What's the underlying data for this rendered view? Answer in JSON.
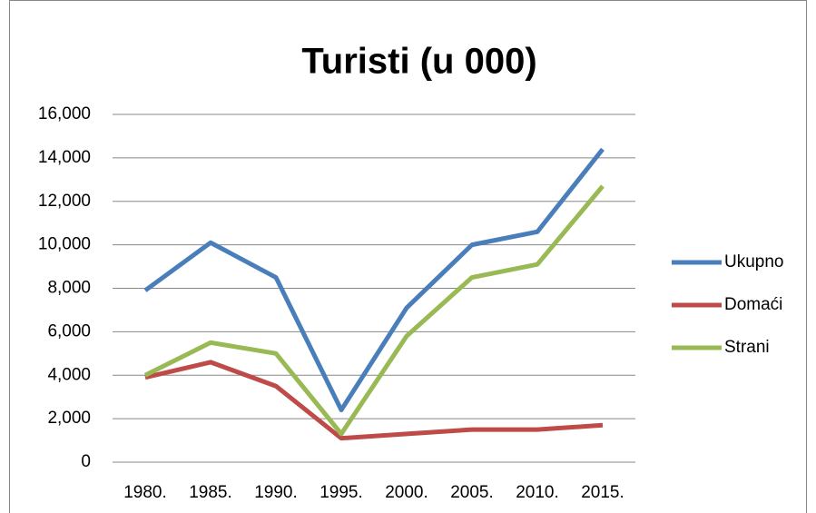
{
  "chart_data": {
    "type": "line",
    "title": "Turisti (u 000)",
    "categories": [
      "1980.",
      "1985.",
      "1990.",
      "1995.",
      "2000.",
      "2005.",
      "2010.",
      "2015."
    ],
    "series": [
      {
        "name": "Ukupno",
        "color": "#4a7ebb",
        "values": [
          7900,
          10100,
          8500,
          2400,
          7100,
          10000,
          10600,
          14400
        ]
      },
      {
        "name": "Domaći",
        "color": "#be4b48",
        "values": [
          3900,
          4600,
          3500,
          1100,
          1300,
          1500,
          1500,
          1700
        ]
      },
      {
        "name": "Strani",
        "color": "#98b954",
        "values": [
          4000,
          5500,
          5000,
          1300,
          5800,
          8500,
          9100,
          12700
        ]
      }
    ],
    "ylim": [
      0,
      16000
    ],
    "yticks": [
      0,
      {
        "value": 2000,
        "label": "2,000"
      },
      {
        "value": 4000,
        "label": "4,000"
      },
      {
        "value": 6000,
        "label": "6,000"
      },
      {
        "value": 8000,
        "label": "8,000"
      },
      {
        "value": 10000,
        "label": "10,000"
      },
      {
        "value": 12000,
        "label": "12,000"
      },
      {
        "value": 14000,
        "label": "14,000"
      },
      {
        "value": 16000,
        "label": "16,000"
      }
    ],
    "grid": true,
    "legend": "right"
  }
}
